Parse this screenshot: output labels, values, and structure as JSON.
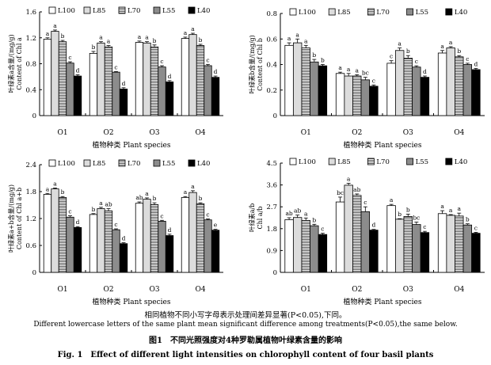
{
  "chart_data": [
    {
      "type": "bar",
      "ylabel": "叶绿素a含量/(mg/g)",
      "ylabel_en": "Content of Chl a",
      "xlabel": "植物种类 Plant species",
      "categories": [
        "O1",
        "O2",
        "O3",
        "O4"
      ],
      "ylim": [
        0,
        1.6
      ],
      "yticks": [
        "0",
        "0.4",
        "0.8",
        "1.2",
        "1.6"
      ],
      "series": [
        {
          "name": "L100",
          "values": [
            1.18,
            0.96,
            1.13,
            1.19
          ],
          "err": [
            0.02,
            0.03,
            0.02,
            0.02
          ],
          "letters": [
            "a",
            "b",
            "a",
            "a"
          ]
        },
        {
          "name": "L85",
          "values": [
            1.3,
            1.12,
            1.12,
            1.25
          ],
          "err": [
            0.02,
            0.02,
            0.02,
            0.02
          ],
          "letters": [
            "a",
            "a",
            "a",
            "a"
          ]
        },
        {
          "name": "L70",
          "values": [
            1.14,
            1.06,
            1.06,
            1.08
          ],
          "err": [
            0.02,
            0.02,
            0.03,
            0.02
          ],
          "letters": [
            "b",
            "a",
            "b",
            "b"
          ]
        },
        {
          "name": "L55",
          "values": [
            0.81,
            0.67,
            0.75,
            0.77
          ],
          "err": [
            0.02,
            0.01,
            0.02,
            0.02
          ],
          "letters": [
            "c",
            "c",
            "c",
            "c"
          ]
        },
        {
          "name": "L40",
          "values": [
            0.61,
            0.41,
            0.52,
            0.59
          ],
          "err": [
            0.02,
            0.02,
            0.02,
            0.02
          ],
          "letters": [
            "d",
            "d",
            "d",
            "d"
          ]
        }
      ]
    },
    {
      "type": "bar",
      "ylabel": "叶绿素b含量/(mg/g)",
      "ylabel_en": "Content of Chl b",
      "xlabel": "植物种类 Plant species",
      "categories": [
        "O1",
        "O2",
        "O3",
        "O4"
      ],
      "ylim": [
        0,
        0.8
      ],
      "yticks": [
        "0",
        "0.2",
        "0.4",
        "0.6",
        "0.8"
      ],
      "series": [
        {
          "name": "L100",
          "values": [
            0.55,
            0.33,
            0.41,
            0.49
          ],
          "err": [
            0.02,
            0.01,
            0.02,
            0.02
          ],
          "letters": [
            "a",
            "a",
            "c",
            "a"
          ]
        },
        {
          "name": "L85",
          "values": [
            0.57,
            0.31,
            0.51,
            0.53
          ],
          "err": [
            0.03,
            0.02,
            0.02,
            0.01
          ],
          "letters": [
            "a",
            "a",
            "a",
            "a"
          ]
        },
        {
          "name": "L70",
          "values": [
            0.53,
            0.31,
            0.45,
            0.46
          ],
          "err": [
            0.02,
            0.01,
            0.02,
            0.01
          ],
          "letters": [
            "a",
            "a",
            "b",
            "b"
          ]
        },
        {
          "name": "L55",
          "values": [
            0.42,
            0.28,
            0.38,
            0.4
          ],
          "err": [
            0.02,
            0.02,
            0.01,
            0.01
          ],
          "letters": [
            "b",
            "bc",
            "c",
            "c"
          ]
        },
        {
          "name": "L40",
          "values": [
            0.39,
            0.23,
            0.3,
            0.36
          ],
          "err": [
            0.01,
            0.01,
            0.01,
            0.01
          ],
          "letters": [
            "b",
            "c",
            "d",
            "d"
          ]
        }
      ]
    },
    {
      "type": "bar",
      "ylabel": "叶绿素a+b含量/(mg/g)",
      "ylabel_en": "Content of Chl a+b",
      "xlabel": "植物种类 Plant species",
      "categories": [
        "O1",
        "O2",
        "O3",
        "O4"
      ],
      "ylim": [
        0,
        2.4
      ],
      "yticks": [
        "0",
        "0.6",
        "1.2",
        "1.8",
        "2.4"
      ],
      "series": [
        {
          "name": "L100",
          "values": [
            1.74,
            1.29,
            1.54,
            1.67
          ],
          "err": [
            0.02,
            0.02,
            0.03,
            0.02
          ],
          "letters": [
            "a",
            "b",
            "ab",
            "a"
          ]
        },
        {
          "name": "L85",
          "values": [
            1.86,
            1.42,
            1.63,
            1.78
          ],
          "err": [
            0.02,
            0.03,
            0.03,
            0.04
          ],
          "letters": [
            "a",
            "a",
            "a",
            "a"
          ]
        },
        {
          "name": "L70",
          "values": [
            1.67,
            1.37,
            1.51,
            1.53
          ],
          "err": [
            0.02,
            0.05,
            0.04,
            0.02
          ],
          "letters": [
            "b",
            "ab",
            "b",
            "b"
          ]
        },
        {
          "name": "L55",
          "values": [
            1.23,
            0.95,
            1.14,
            1.17
          ],
          "err": [
            0.03,
            0.02,
            0.02,
            0.02
          ],
          "letters": [
            "c",
            "c",
            "c",
            "c"
          ]
        },
        {
          "name": "L40",
          "values": [
            1.0,
            0.64,
            0.82,
            0.94
          ],
          "err": [
            0.02,
            0.02,
            0.03,
            0.02
          ],
          "letters": [
            "d",
            "d",
            "d",
            "e"
          ]
        }
      ]
    },
    {
      "type": "bar",
      "ylabel": "叶绿素a/b",
      "ylabel_en": "Chl a/b",
      "xlabel": "植物种类 Plant species",
      "categories": [
        "O1",
        "O2",
        "O3",
        "O4"
      ],
      "ylim": [
        0,
        4.5
      ],
      "yticks": [
        "0",
        "0.9",
        "1.8",
        "2.7",
        "3.6",
        "4.5"
      ],
      "series": [
        {
          "name": "L100",
          "values": [
            2.17,
            2.9,
            2.75,
            2.42
          ],
          "err": [
            0.08,
            0.2,
            0.05,
            0.12
          ],
          "letters": [
            "ab",
            "bc",
            "a",
            "a"
          ]
        },
        {
          "name": "L85",
          "values": [
            2.26,
            3.59,
            2.19,
            2.35
          ],
          "err": [
            0.1,
            0.08,
            0.02,
            0.03
          ],
          "letters": [
            "ab",
            "a",
            "b",
            "a"
          ]
        },
        {
          "name": "L70",
          "values": [
            2.14,
            3.17,
            2.3,
            2.32
          ],
          "err": [
            0.1,
            0.06,
            0.1,
            0.12
          ],
          "letters": [
            "a",
            "ab",
            "b",
            "a"
          ]
        },
        {
          "name": "L55",
          "values": [
            1.92,
            2.5,
            1.97,
            1.95
          ],
          "err": [
            0.06,
            0.2,
            0.1,
            0.05
          ],
          "letters": [
            "b",
            "c",
            "bc",
            "b"
          ]
        },
        {
          "name": "L40",
          "values": [
            1.56,
            1.74,
            1.64,
            1.61
          ],
          "err": [
            0.05,
            0.03,
            0.05,
            0.04
          ],
          "letters": [
            "c",
            "d",
            "c",
            "c"
          ]
        }
      ]
    }
  ],
  "caption": {
    "note_cn": "相同植物不同小写字母表示处理间差异显著(P<0.05),下同。",
    "note_en": "Different lowercase letters of the same plant mean significant difference among treatments(P<0.05),the same below.",
    "title_cn": "图1　不同光照强度对4种罗勒属植物叶绿素含量的影响",
    "title_en": "Fig. 1　Effect of different light intensities on chlorophyll content of four basil plants"
  }
}
